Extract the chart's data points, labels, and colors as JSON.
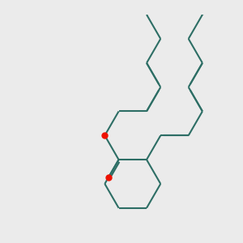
{
  "bg_color": "#ebebeb",
  "bond_color": "#2d6e65",
  "oxygen_color": "#ee1100",
  "lw": 1.5,
  "fig_size": [
    3.0,
    3.0
  ],
  "dpi": 100
}
